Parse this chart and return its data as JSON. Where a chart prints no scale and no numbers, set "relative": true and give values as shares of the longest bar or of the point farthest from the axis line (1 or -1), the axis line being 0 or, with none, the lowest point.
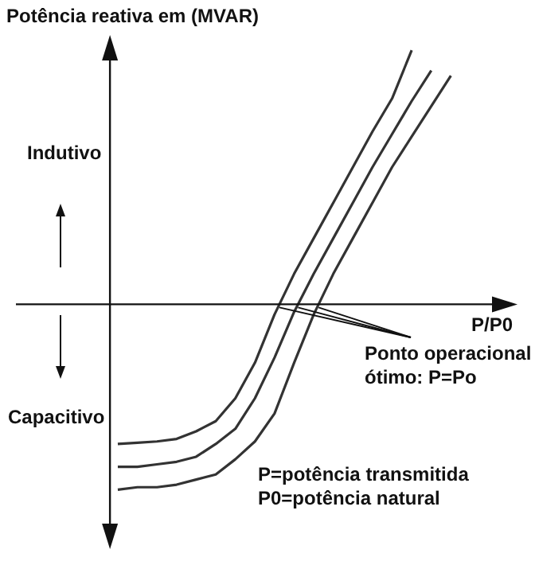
{
  "chart_data": {
    "type": "line",
    "relative": true,
    "ylabel": "Potência reativa em (MVAR)",
    "xlabel": "P/P0",
    "grid": false,
    "marker": "none",
    "line_style": "solid",
    "annotations": [
      "Indutivo",
      "Capacitivo",
      "Ponto operacional\nótimo: P=Po",
      "P=potência transmitida\nP0=potência natural"
    ],
    "categories": [
      null,
      null,
      null,
      null,
      null,
      null,
      null,
      null,
      null,
      null,
      null,
      null,
      null,
      null,
      null,
      null,
      null,
      null,
      null
    ],
    "series": [
      {
        "color": "#333333",
        "values": [
          -0.55,
          -0.545,
          -0.54,
          -0.53,
          -0.5,
          -0.46,
          -0.37,
          -0.23,
          -0.04,
          0.12,
          0.26,
          0.4,
          0.54,
          0.68,
          0.81,
          1.0,
          null,
          null,
          null
        ]
      },
      {
        "color": "#333333",
        "values": [
          -0.64,
          -0.64,
          -0.63,
          -0.62,
          -0.6,
          -0.55,
          -0.49,
          -0.37,
          -0.21,
          -0.03,
          0.12,
          0.26,
          0.4,
          0.54,
          0.67,
          0.8,
          0.92,
          null,
          null
        ]
      },
      {
        "color": "#333333",
        "values": [
          -0.73,
          -0.72,
          -0.72,
          -0.71,
          -0.69,
          -0.67,
          -0.61,
          -0.54,
          -0.43,
          -0.23,
          -0.04,
          0.12,
          0.26,
          0.4,
          0.54,
          0.66,
          0.78,
          0.9,
          null
        ]
      }
    ]
  }
}
